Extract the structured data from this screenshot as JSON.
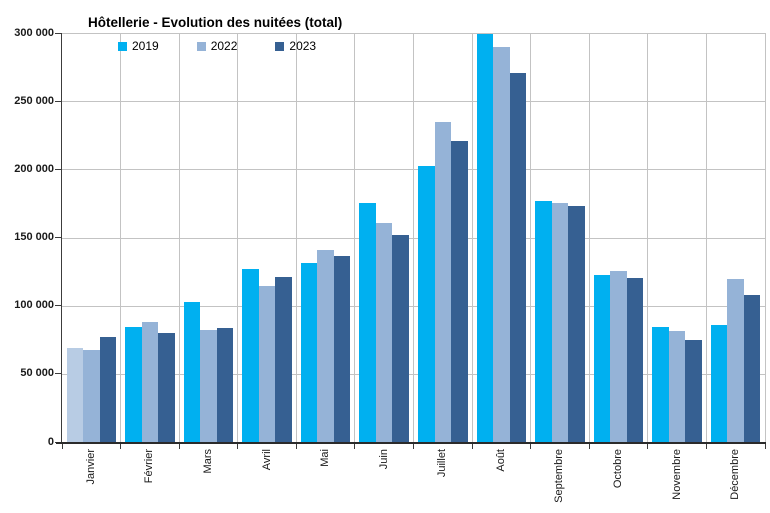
{
  "chart_data": {
    "type": "bar",
    "title": "Hôtellerie - Evolution des nuitées (total)",
    "categories": [
      "Janvier",
      "Février",
      "Mars",
      "Avril",
      "Mai",
      "Juin",
      "Juillet",
      "Août",
      "Septembre",
      "Octobre",
      "Novembre",
      "Décembre"
    ],
    "series": [
      {
        "name": "2019",
        "color": "#00b0f0",
        "values": [
          69000,
          84500,
          102500,
          127000,
          131000,
          175000,
          202500,
          299000,
          177000,
          122500,
          84500,
          85500
        ],
        "point_colors": {
          "0": "#b8cce4"
        }
      },
      {
        "name": "2022",
        "color": "#95b3d7",
        "values": [
          67500,
          88000,
          82000,
          114500,
          140500,
          161000,
          234500,
          290000,
          175500,
          125500,
          81500,
          119500
        ]
      },
      {
        "name": "2023",
        "color": "#366092",
        "values": [
          77000,
          80000,
          83500,
          121000,
          136500,
          151500,
          221000,
          270500,
          173000,
          120000,
          75000,
          108000
        ]
      }
    ],
    "y_axis": {
      "min": 0,
      "max": 300000,
      "step": 50000,
      "tick_labels": [
        "0",
        "50 000",
        "100 000",
        "150 000",
        "200 000",
        "250 000",
        "300 000"
      ]
    },
    "x_axis_label_rotation": -90,
    "grid": "horizontal and vertical category separators",
    "legend_position": "top-left-inside"
  }
}
